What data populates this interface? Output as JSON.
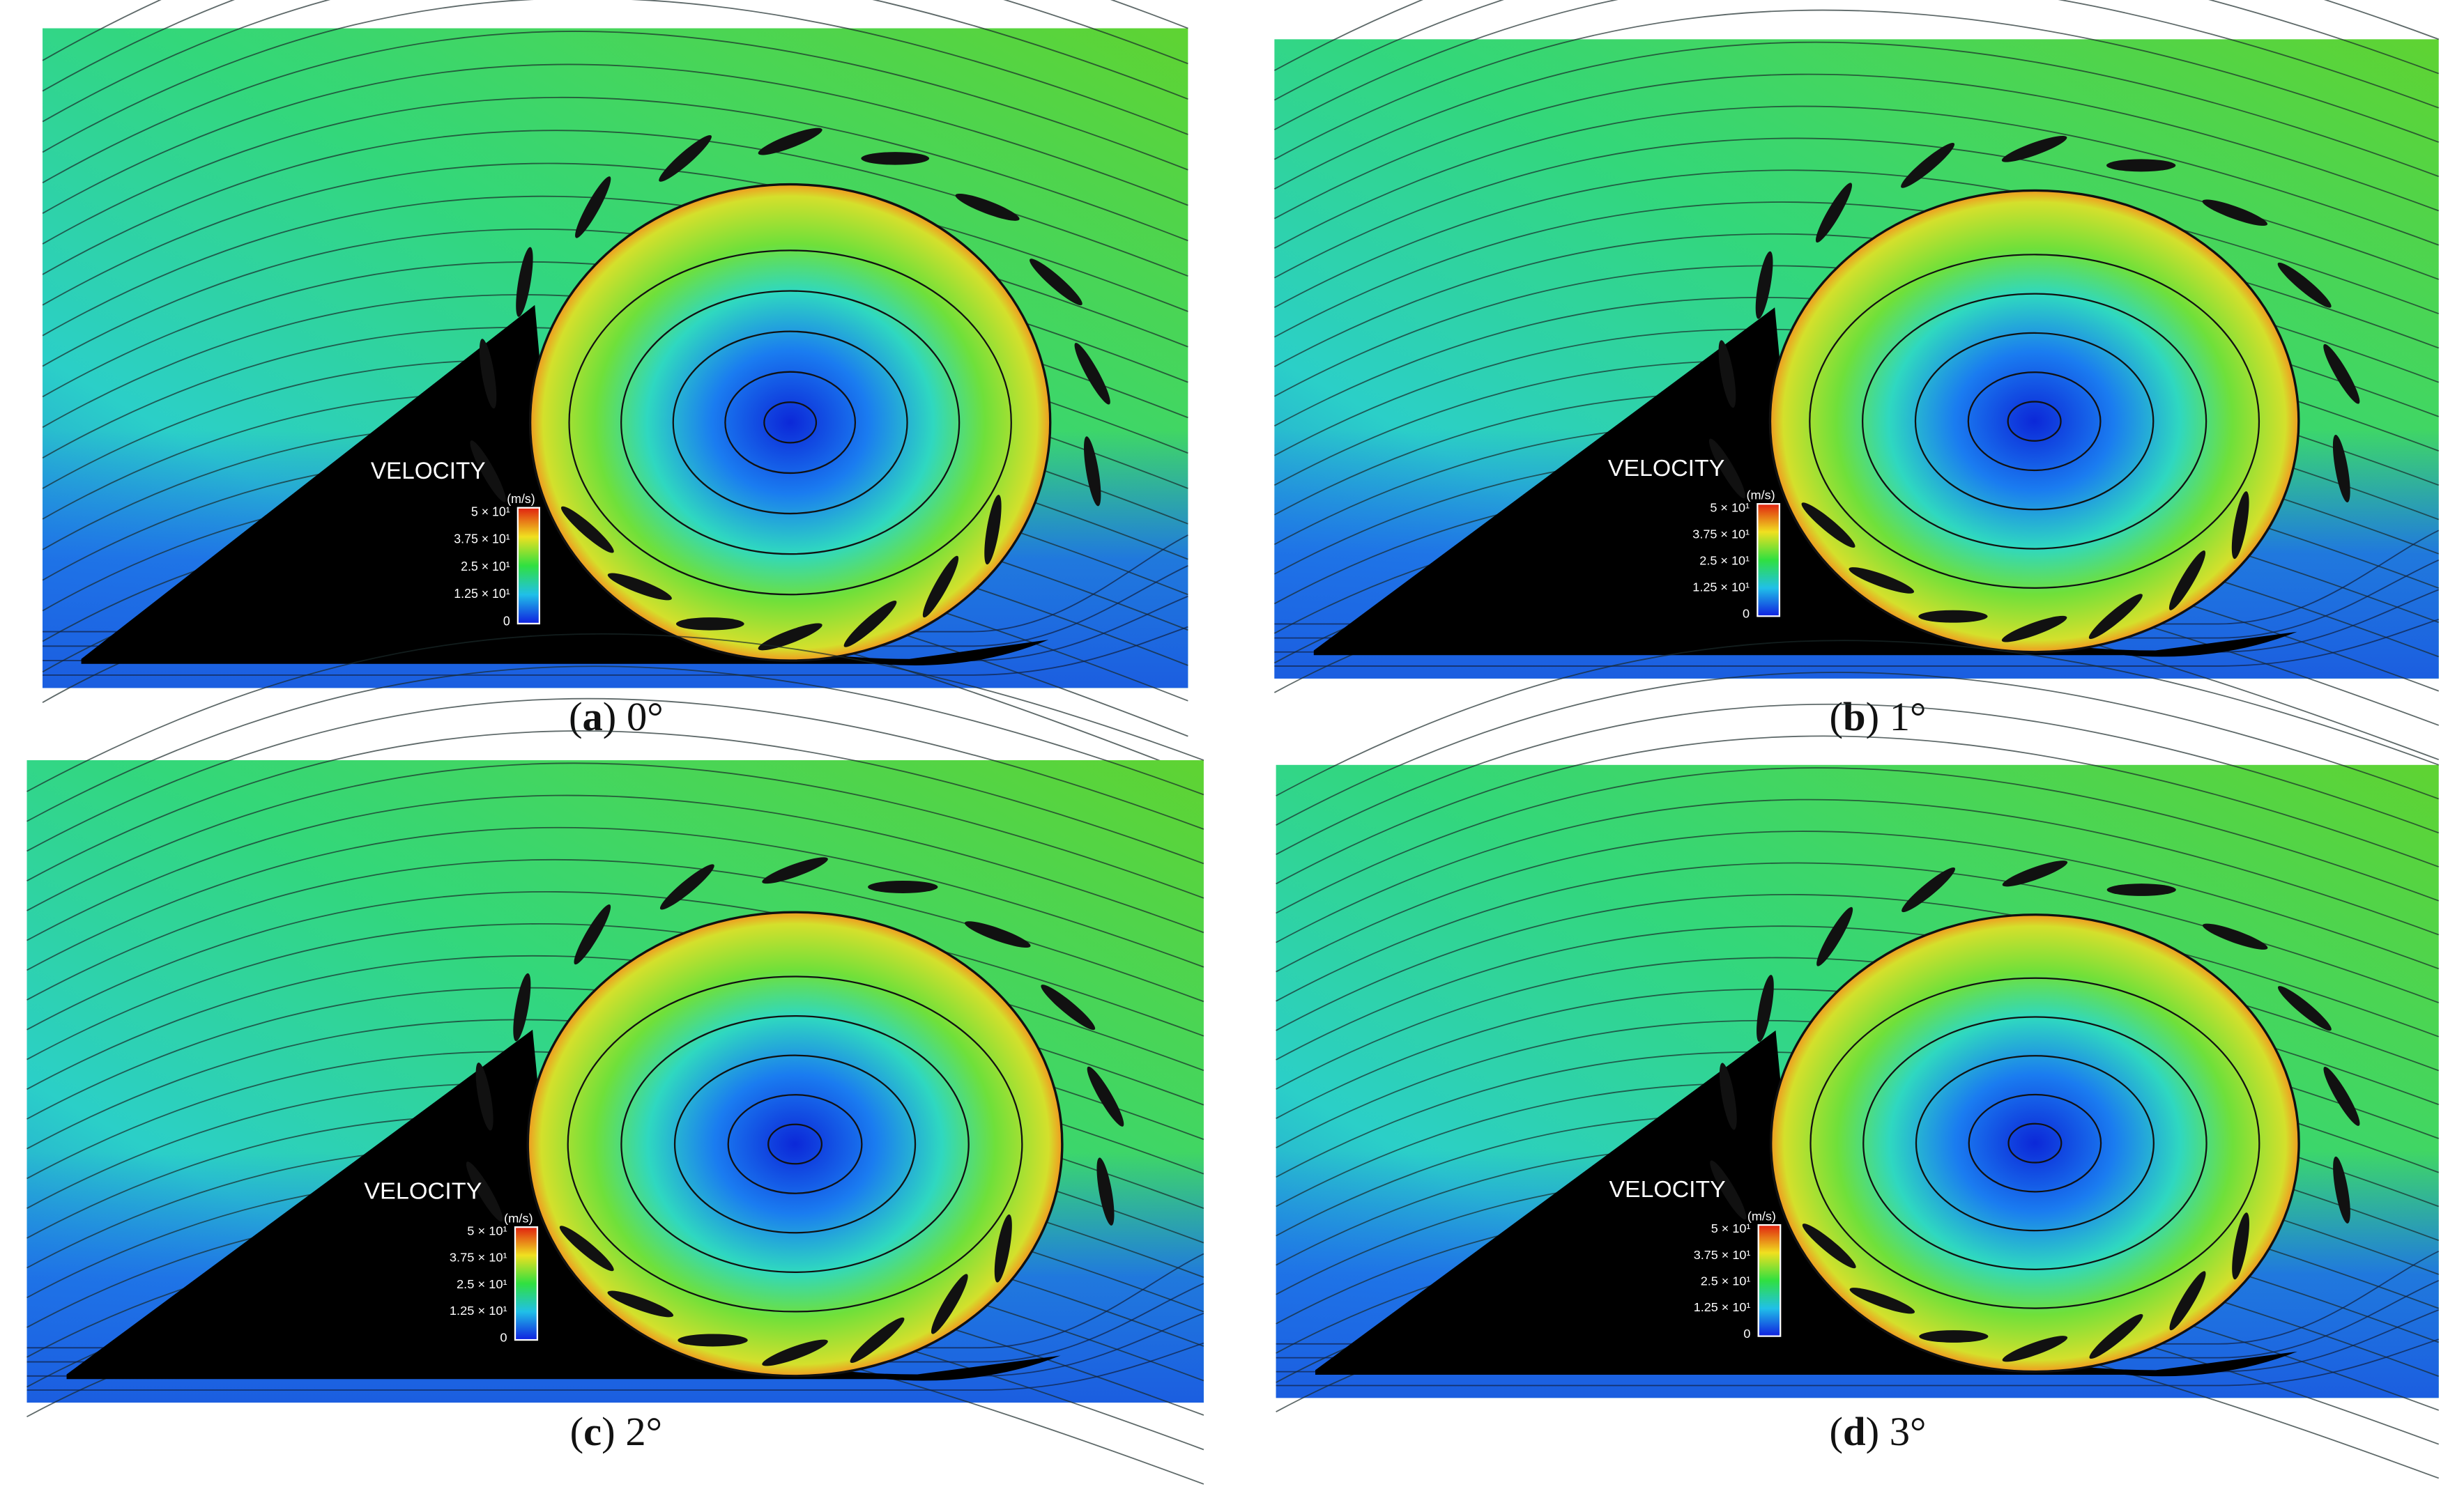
{
  "panels": [
    {
      "caption": [
        "(",
        "a",
        ") 0°"
      ]
    },
    {
      "caption": [
        "(",
        "b",
        ") 1°"
      ]
    },
    {
      "caption": [
        "(",
        "c",
        ") 2°"
      ]
    },
    {
      "caption": [
        "(",
        "d",
        ") 3°"
      ]
    }
  ],
  "legend": {
    "title": "VELOCITY",
    "unit": "(m/s)",
    "ticks": [
      "5 × 10¹",
      "3.75 × 10¹",
      "2.5 × 10¹",
      "1.25 × 10¹",
      "0"
    ]
  }
}
